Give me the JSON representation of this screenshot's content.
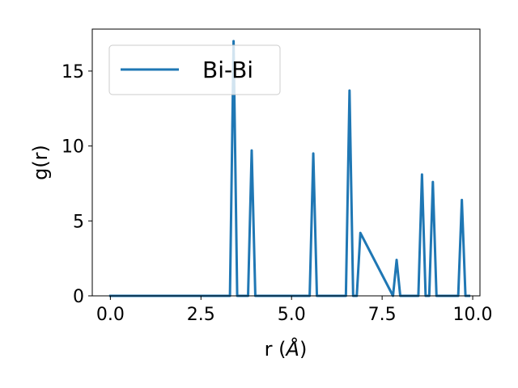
{
  "chart_data": {
    "type": "line",
    "xlabel_main": "r (",
    "xlabel_unit": "Å",
    "xlabel_close": ")",
    "ylabel": "g(r)",
    "xlim": [
      -0.5,
      10.2
    ],
    "ylim": [
      0,
      17.8
    ],
    "xticks": [
      0.0,
      2.5,
      5.0,
      7.5,
      10.0
    ],
    "xtick_labels": [
      "0.0",
      "2.5",
      "5.0",
      "7.5",
      "10.0"
    ],
    "yticks": [
      0,
      5,
      10,
      15
    ],
    "ytick_labels": [
      "0",
      "5",
      "10",
      "15"
    ],
    "grid": false,
    "legend_position": "upper left",
    "series": [
      {
        "name": "Bi-Bi",
        "color": "#1f77b4",
        "x": [
          0.0,
          3.3,
          3.4,
          3.5,
          3.8,
          3.9,
          4.0,
          5.5,
          5.6,
          5.7,
          6.5,
          6.6,
          6.7,
          6.8,
          6.9,
          7.8,
          7.9,
          8.0,
          8.5,
          8.6,
          8.7,
          8.8,
          8.9,
          9.0,
          9.6,
          9.7,
          9.8,
          9.9
        ],
        "y": [
          0,
          0,
          17.0,
          0,
          0,
          9.7,
          0,
          0,
          9.5,
          0,
          0,
          13.7,
          0,
          0,
          4.2,
          0,
          2.4,
          0,
          0,
          8.1,
          0,
          0,
          7.6,
          0,
          0,
          6.4,
          0,
          0
        ]
      }
    ]
  }
}
